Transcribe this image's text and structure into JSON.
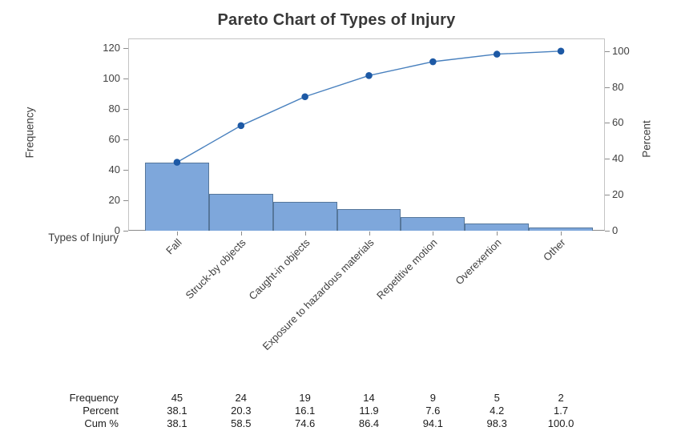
{
  "chart_data": {
    "type": "bar",
    "subtype": "pareto",
    "title": "Pareto Chart of Types of Injury",
    "xlabel": "Types of Injury",
    "ylabel_left": "Frequency",
    "ylabel_right": "Percent",
    "categories": [
      "Fall",
      "Struck-by objects",
      "Caught-in objects",
      "Exposure to hazardous materials",
      "Repetitive motion",
      "Overexertion",
      "Other"
    ],
    "series": [
      {
        "name": "Frequency",
        "type": "bar",
        "axis": "left",
        "values": [
          45,
          24,
          19,
          14,
          9,
          5,
          2
        ]
      },
      {
        "name": "Cum %",
        "type": "line",
        "axis": "right",
        "values": [
          38.1,
          58.5,
          74.6,
          86.4,
          94.1,
          98.3,
          100.0
        ]
      }
    ],
    "percent_of_total": [
      38.1,
      20.3,
      16.1,
      11.9,
      7.6,
      4.2,
      1.7
    ],
    "total_frequency": 118,
    "ylim_left": [
      0,
      120
    ],
    "yticks_left": [
      0,
      20,
      40,
      60,
      80,
      100,
      120
    ],
    "ylim_right": [
      0,
      100
    ],
    "yticks_right": [
      0,
      20,
      40,
      60,
      80,
      100
    ],
    "grid": "horizontal gridlines at right-axis (percent) ticks",
    "legend": "none",
    "colors": {
      "bar_fill": "#7ea7db",
      "bar_border": "#56779b",
      "line": "#4880be",
      "marker": "#1d59a5",
      "gridline": "#eaeaea",
      "plot_border": "#c3c3c3",
      "text": "#3a3a3a"
    }
  },
  "table": {
    "rows": [
      {
        "label": "Frequency",
        "values": [
          "45",
          "24",
          "19",
          "14",
          "9",
          "5",
          "2"
        ]
      },
      {
        "label": "Percent",
        "values": [
          "38.1",
          "20.3",
          "16.1",
          "11.9",
          "7.6",
          "4.2",
          "1.7"
        ]
      },
      {
        "label": "Cum %",
        "values": [
          "38.1",
          "58.5",
          "74.6",
          "86.4",
          "94.1",
          "98.3",
          "100.0"
        ]
      }
    ]
  }
}
